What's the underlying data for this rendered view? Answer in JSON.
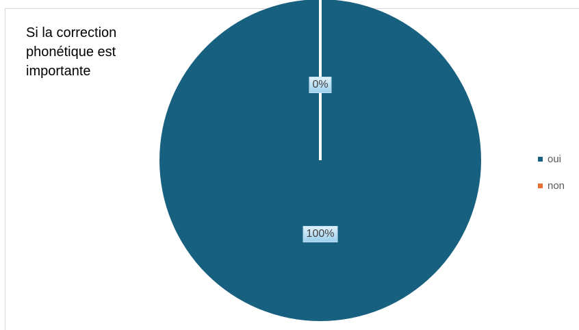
{
  "chart_data": {
    "type": "pie",
    "title": "Si la correction\nphonétique est\nimportante",
    "categories": [
      "oui",
      "non"
    ],
    "values": [
      100,
      0
    ],
    "value_labels": [
      "100%",
      "0%"
    ],
    "colors": [
      "#18607f",
      "#e97132"
    ],
    "legend_position": "right"
  }
}
